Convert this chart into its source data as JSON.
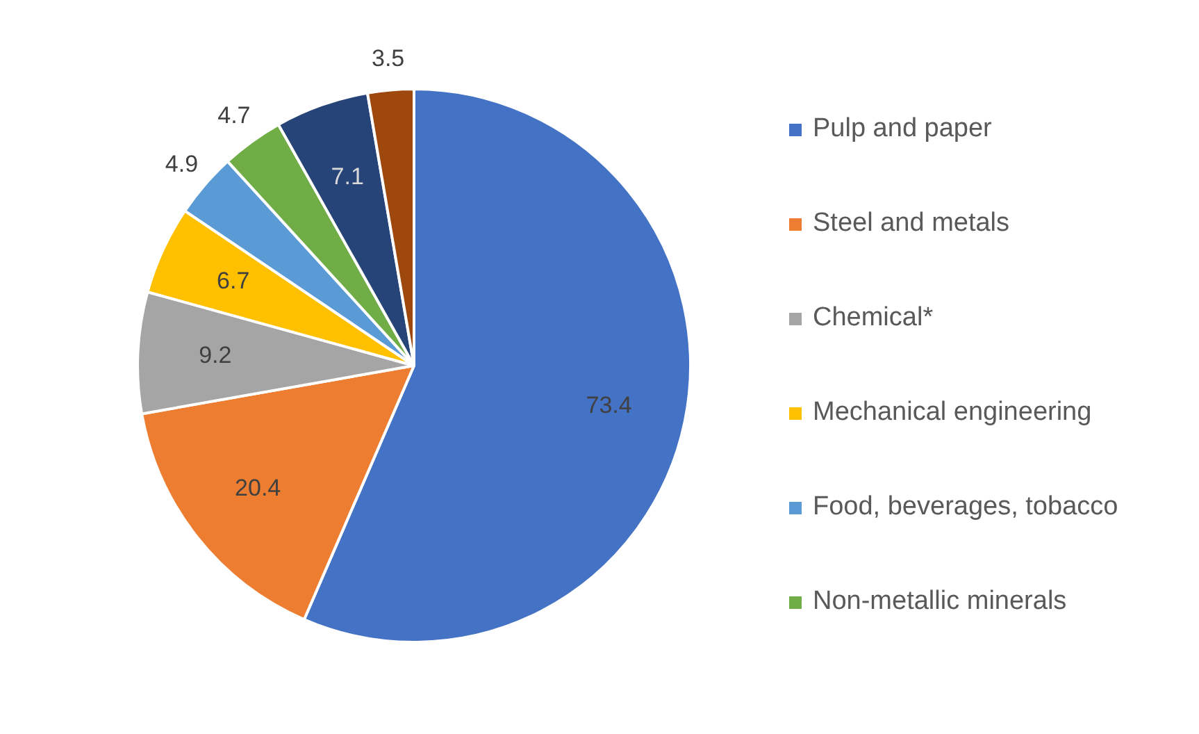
{
  "chart_data": {
    "type": "pie",
    "categories": [
      "Pulp and paper",
      "Steel and metals",
      "Chemical*",
      "Mechanical engineering",
      "Food, beverages, tobacco",
      "Non-metallic minerals",
      null,
      null
    ],
    "values": [
      73.4,
      20.4,
      9.2,
      6.7,
      4.9,
      4.7,
      7.1,
      3.5
    ],
    "colors": [
      "#4472c4",
      "#ed7d31",
      "#a5a5a5",
      "#ffc000",
      "#5b9bd5",
      "#70ad47",
      "#264478",
      "#9e480e"
    ],
    "data_labels": true,
    "legend": "right"
  }
}
